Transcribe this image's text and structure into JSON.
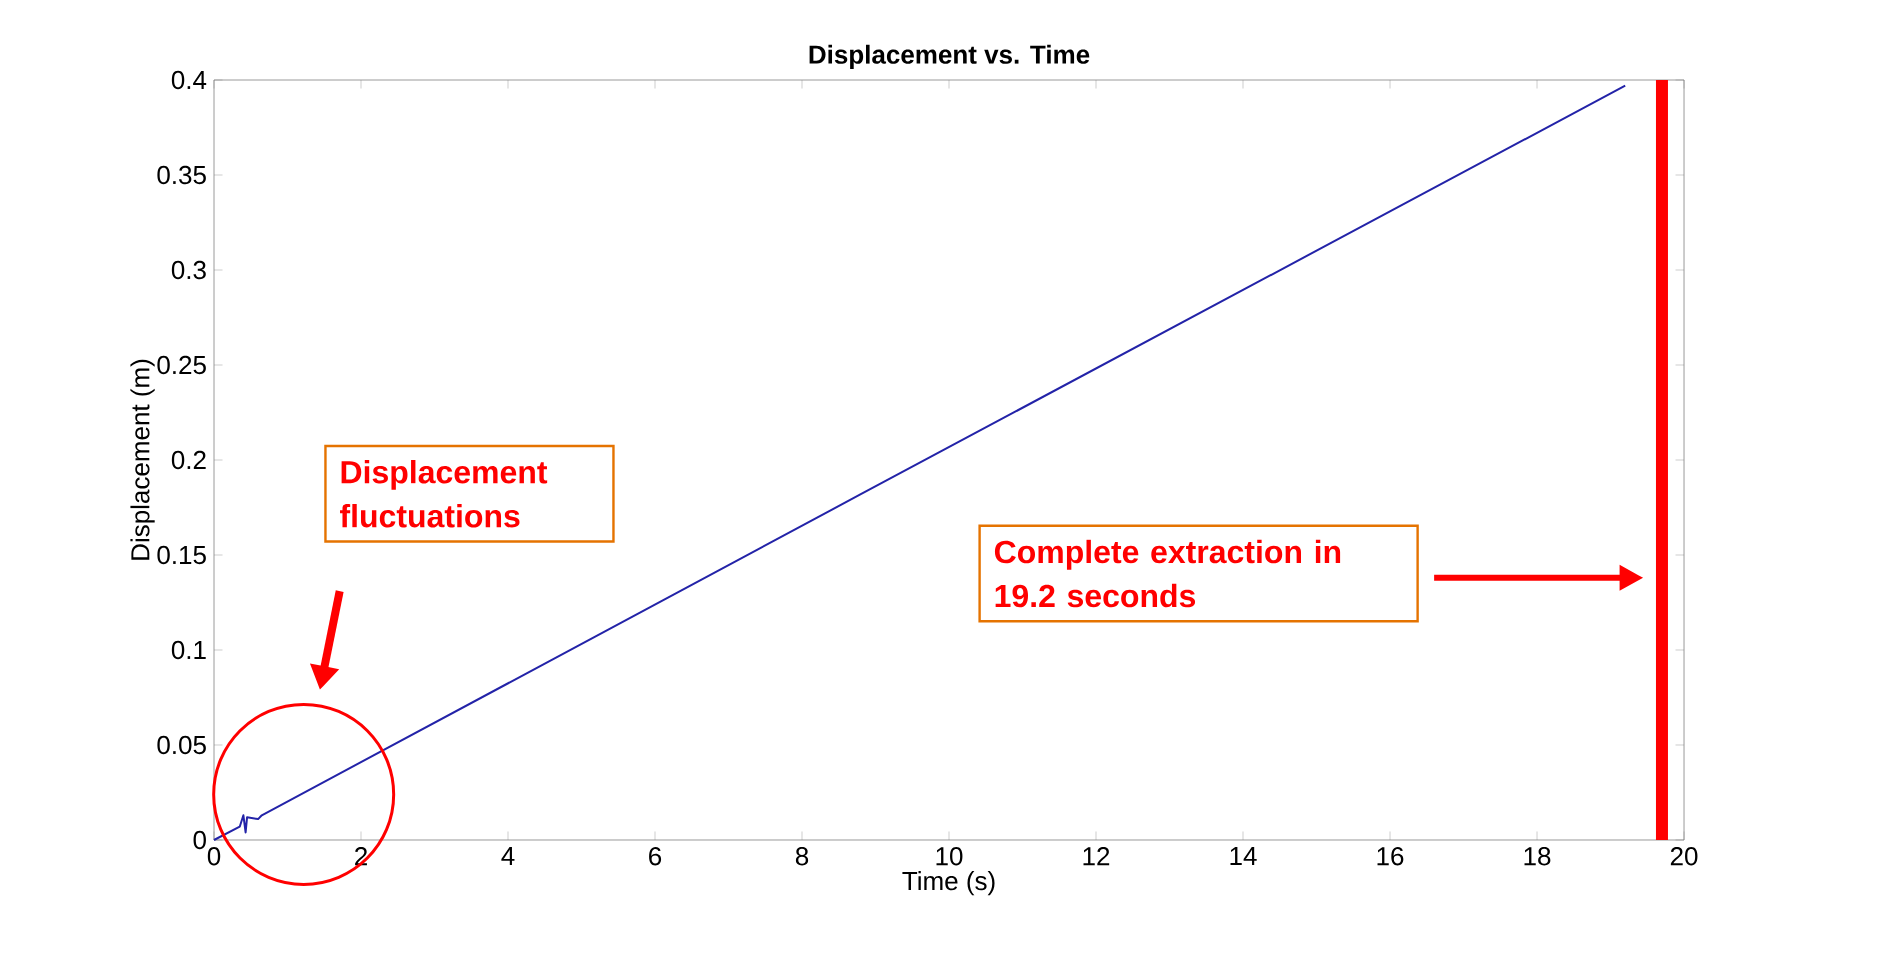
{
  "chart_data": {
    "type": "line",
    "title": "Displacement vs. Time",
    "xlabel": "Time (s)",
    "ylabel": "Displacement (m)",
    "x": [
      0,
      0.35,
      0.4,
      0.43,
      0.45,
      0.6,
      0.65,
      8.8,
      19.2
    ],
    "series": [
      {
        "color": "#2323a8",
        "values": [
          0,
          0.007,
          0.013,
          0.004,
          0.012,
          0.011,
          0.013,
          0.182,
          0.397
        ]
      }
    ],
    "xlim": [
      0,
      20
    ],
    "ylim": [
      0,
      0.4
    ],
    "xticks": [
      0,
      2,
      4,
      6,
      8,
      10,
      12,
      14,
      16,
      18,
      20
    ],
    "yticks": [
      0,
      0.05,
      0.1,
      0.15,
      0.2,
      0.25,
      0.3,
      0.35,
      0.4
    ],
    "ref_lines": [
      {
        "axis": "x",
        "value": 19.7,
        "color": "#ff0000"
      }
    ],
    "annotations": [
      "Displacement fluctuations",
      "Complete extraction in 19.2 seconds"
    ]
  }
}
